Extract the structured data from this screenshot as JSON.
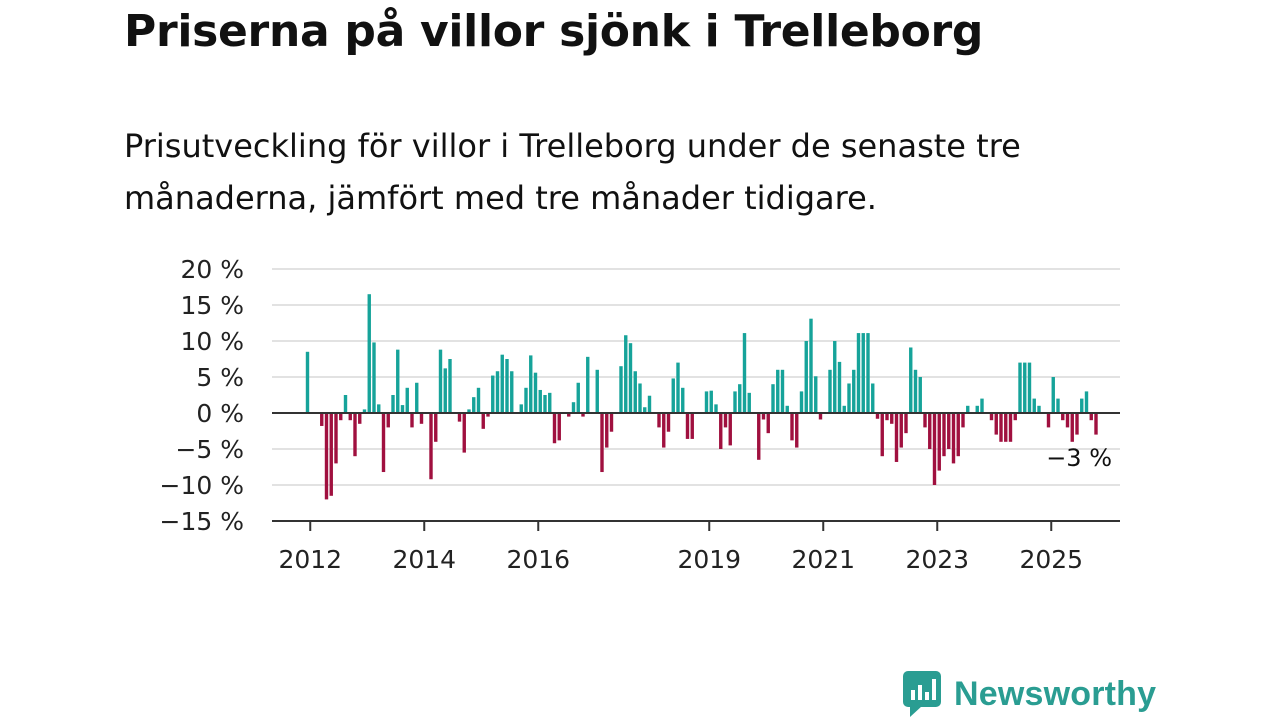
{
  "title": "Priserna på villor sjönk i Trelleborg",
  "subtitle": "Prisutveckling för villor i Trelleborg under de senaste tre månaderna, jämfört med tre månader tidigare.",
  "brand": "Newsworthy",
  "colors": {
    "positive": "#16a39a",
    "negative": "#a0103f",
    "brand": "#2a9d92"
  },
  "chart_data": {
    "type": "bar",
    "x_start": "2011-12",
    "interval": "month",
    "ylim": [
      -15,
      20
    ],
    "y_ticks": [
      20,
      15,
      10,
      5,
      0,
      -5,
      -10,
      -15
    ],
    "y_tick_labels": [
      "20 %",
      "15 %",
      "10 %",
      "5 %",
      "0 %",
      "−5 %",
      "−10 %",
      "−15 %"
    ],
    "x_ticks": [
      {
        "label": "2012",
        "index": 1
      },
      {
        "label": "2014",
        "index": 25
      },
      {
        "label": "2016",
        "index": 49
      },
      {
        "label": "2019",
        "index": 85
      },
      {
        "label": "2021",
        "index": 109
      },
      {
        "label": "2023",
        "index": 133
      },
      {
        "label": "2025",
        "index": 157
      }
    ],
    "values": [
      8.5,
      0,
      0,
      -1.8,
      -12,
      -11.5,
      -7,
      -1,
      2.5,
      -1,
      -6,
      -1.5,
      0.5,
      16.5,
      9.8,
      1.2,
      -8.2,
      -2,
      2.5,
      8.8,
      1.1,
      3.5,
      -2,
      4.2,
      -1.5,
      0,
      -9.2,
      -4,
      8.8,
      6.2,
      7.5,
      0,
      -1.2,
      -5.5,
      0.5,
      2.2,
      3.5,
      -2.2,
      -0.5,
      5.2,
      5.8,
      8.1,
      7.5,
      5.8,
      0,
      1.2,
      3.5,
      8,
      5.6,
      3.2,
      2.5,
      2.8,
      -4.2,
      -3.8,
      0,
      -0.5,
      1.5,
      4.2,
      -0.5,
      7.8,
      0,
      6,
      -8.2,
      -4.8,
      -2.6,
      0,
      6.5,
      10.8,
      9.7,
      5.8,
      4.1,
      0.8,
      2.4,
      0,
      -2,
      -4.8,
      -2.6,
      4.8,
      7,
      3.5,
      -3.6,
      -3.6,
      0,
      0,
      3,
      3.1,
      1.2,
      -5,
      -2,
      -4.5,
      3,
      4,
      11.1,
      2.8,
      0,
      -6.5,
      -0.9,
      -2.8,
      4,
      6,
      6,
      1,
      -3.8,
      -4.8,
      3,
      10,
      13.1,
      5.1,
      -0.9,
      0,
      6,
      10,
      7.1,
      1,
      4.1,
      6,
      11.1,
      11.1,
      11.1,
      4.1,
      -0.8,
      -6,
      -1,
      -1.5,
      -6.8,
      -4.8,
      -2.8,
      9.1,
      6,
      5,
      -2,
      -5,
      -10,
      -8,
      -6,
      -5,
      -7,
      -6,
      -2,
      1,
      0,
      1,
      2,
      0,
      -1,
      -3,
      -4,
      -4,
      -4,
      -1,
      7,
      7,
      7,
      2,
      1,
      0,
      -2,
      5,
      2,
      -1,
      -2,
      -4,
      -3,
      2,
      3,
      -1,
      -3
    ],
    "annotation": {
      "label": "−3 %",
      "index": 170
    }
  }
}
